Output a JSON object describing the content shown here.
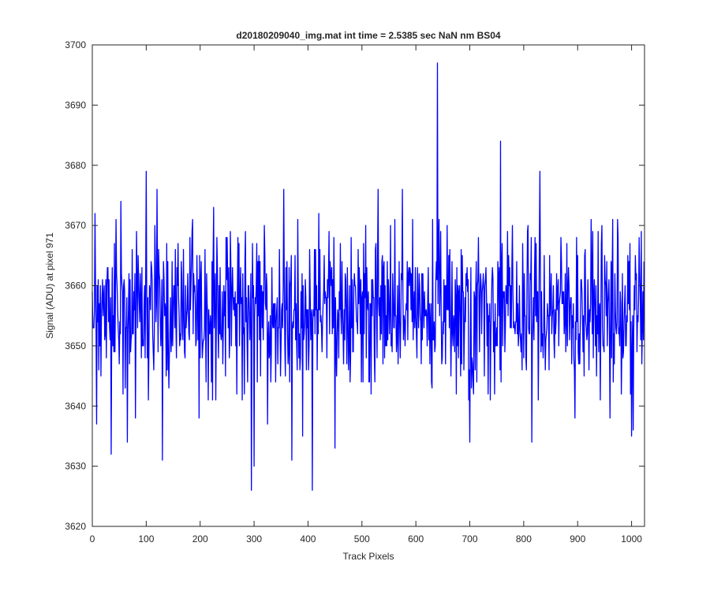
{
  "chart_data": {
    "type": "line",
    "title": "d20180209040_img.mat int time = 2.5385 sec  NaN nm BS04",
    "xlabel": "Track Pixels",
    "ylabel": "Signal (ADU) at pixel 971",
    "xlim": [
      0,
      1024
    ],
    "ylim": [
      3620,
      3700
    ],
    "xticks": [
      0,
      100,
      200,
      300,
      400,
      500,
      600,
      700,
      800,
      900,
      1000
    ],
    "yticks": [
      3620,
      3630,
      3640,
      3650,
      3660,
      3670,
      3680,
      3690,
      3700
    ],
    "xtick_labels": [
      "0",
      "100",
      "200",
      "300",
      "400",
      "500",
      "600",
      "700",
      "800",
      "900",
      "1000"
    ],
    "ytick_labels": [
      "3620",
      "3630",
      "3640",
      "3650",
      "3660",
      "3670",
      "3680",
      "3690",
      "3700"
    ],
    "grid": false,
    "series": [
      {
        "color": "#0000ff",
        "n_points": 1024,
        "baseline_mean": 3656,
        "noise_range": [
          3641,
          3671
        ],
        "notable_points": [
          {
            "x": 5,
            "y": 3672
          },
          {
            "x": 8,
            "y": 3637
          },
          {
            "x": 35,
            "y": 3632
          },
          {
            "x": 53,
            "y": 3674
          },
          {
            "x": 65,
            "y": 3634
          },
          {
            "x": 80,
            "y": 3638
          },
          {
            "x": 100,
            "y": 3679
          },
          {
            "x": 120,
            "y": 3676
          },
          {
            "x": 130,
            "y": 3631
          },
          {
            "x": 198,
            "y": 3638
          },
          {
            "x": 225,
            "y": 3673
          },
          {
            "x": 270,
            "y": 3668
          },
          {
            "x": 295,
            "y": 3626
          },
          {
            "x": 300,
            "y": 3630
          },
          {
            "x": 325,
            "y": 3637
          },
          {
            "x": 355,
            "y": 3676
          },
          {
            "x": 370,
            "y": 3631
          },
          {
            "x": 390,
            "y": 3635
          },
          {
            "x": 408,
            "y": 3626
          },
          {
            "x": 420,
            "y": 3672
          },
          {
            "x": 450,
            "y": 3633
          },
          {
            "x": 530,
            "y": 3676
          },
          {
            "x": 575,
            "y": 3676
          },
          {
            "x": 640,
            "y": 3697
          },
          {
            "x": 700,
            "y": 3634
          },
          {
            "x": 757,
            "y": 3684
          },
          {
            "x": 815,
            "y": 3634
          },
          {
            "x": 830,
            "y": 3679
          },
          {
            "x": 895,
            "y": 3638
          },
          {
            "x": 960,
            "y": 3638
          },
          {
            "x": 965,
            "y": 3671
          },
          {
            "x": 1000,
            "y": 3635
          },
          {
            "x": 1003,
            "y": 3636
          },
          {
            "x": 1018,
            "y": 3669
          }
        ]
      }
    ]
  }
}
